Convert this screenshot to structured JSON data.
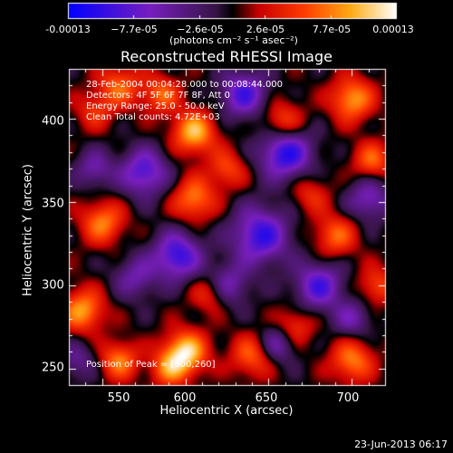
{
  "colorbar": {
    "ticks": [
      "-0.00013",
      "−7.7e-05",
      "−2.6e-05",
      "2.6e-05",
      "7.7e-05",
      "0.00013"
    ],
    "units": "(photons cm⁻² s⁻¹ asec⁻²)"
  },
  "title": "Reconstructed RHESSI Image",
  "info": {
    "time_range": "28-Feb-2004 00:04:28.000 to 00:08:44.000",
    "detectors": "Detectors: 4F 5F 6F 7F 8F, Att 0",
    "energy_range": "Energy Range: 25.0 - 50.0 keV",
    "algorithm": "Clean     Total counts: 4.72E+03",
    "peak": "Position of Peak = [600,260]"
  },
  "axes": {
    "xlabel": "Heliocentric X (arcsec)",
    "ylabel": "Heliocentric Y (arcsec)",
    "xticks": [
      "550",
      "600",
      "650",
      "700"
    ],
    "yticks": [
      "400",
      "350",
      "300",
      "250"
    ],
    "x_tick_values": [
      550,
      600,
      650,
      700
    ],
    "y_tick_values": [
      400,
      350,
      300,
      250
    ],
    "xlim": [
      530,
      720
    ],
    "ylim": [
      240,
      430
    ]
  },
  "footer_date": "23-Jun-2013 06:17",
  "image_sources": [
    {
      "x": 600,
      "y": 260,
      "amp": 1.0,
      "s": 9
    },
    {
      "x": 590,
      "y": 250,
      "amp": 0.6,
      "s": 8
    },
    {
      "x": 605,
      "y": 392,
      "amp": 0.9,
      "s": 9
    },
    {
      "x": 585,
      "y": 415,
      "amp": 0.6,
      "s": 8
    },
    {
      "x": 560,
      "y": 420,
      "amp": 0.6,
      "s": 9
    },
    {
      "x": 545,
      "y": 405,
      "amp": 0.4,
      "s": 8
    },
    {
      "x": 658,
      "y": 398,
      "amp": 0.6,
      "s": 9
    },
    {
      "x": 700,
      "y": 412,
      "amp": 0.8,
      "s": 9
    },
    {
      "x": 712,
      "y": 375,
      "amp": 0.6,
      "s": 8
    },
    {
      "x": 605,
      "y": 352,
      "amp": 0.7,
      "s": 9
    },
    {
      "x": 625,
      "y": 370,
      "amp": 0.5,
      "s": 8
    },
    {
      "x": 550,
      "y": 338,
      "amp": 0.7,
      "s": 9
    },
    {
      "x": 538,
      "y": 285,
      "amp": 0.8,
      "s": 9
    },
    {
      "x": 560,
      "y": 255,
      "amp": 0.7,
      "s": 8
    },
    {
      "x": 640,
      "y": 258,
      "amp": 0.6,
      "s": 9
    },
    {
      "x": 665,
      "y": 275,
      "amp": 0.5,
      "s": 8
    },
    {
      "x": 690,
      "y": 330,
      "amp": 0.6,
      "s": 9
    },
    {
      "x": 715,
      "y": 300,
      "amp": 0.5,
      "s": 8
    },
    {
      "x": 700,
      "y": 255,
      "amp": 0.7,
      "s": 9
    },
    {
      "x": 615,
      "y": 295,
      "amp": 0.5,
      "s": 8
    },
    {
      "x": 675,
      "y": 355,
      "amp": 0.4,
      "s": 8
    },
    {
      "x": 595,
      "y": 318,
      "amp": -0.9,
      "s": 10
    },
    {
      "x": 645,
      "y": 330,
      "amp": -0.9,
      "s": 12
    },
    {
      "x": 660,
      "y": 380,
      "amp": -1.0,
      "s": 11
    },
    {
      "x": 575,
      "y": 368,
      "amp": -0.8,
      "s": 10
    },
    {
      "x": 635,
      "y": 415,
      "amp": -0.8,
      "s": 10
    },
    {
      "x": 570,
      "y": 305,
      "amp": -0.5,
      "s": 9
    },
    {
      "x": 680,
      "y": 300,
      "amp": -0.8,
      "s": 10
    },
    {
      "x": 710,
      "y": 352,
      "amp": -0.6,
      "s": 9
    },
    {
      "x": 655,
      "y": 265,
      "amp": -0.6,
      "s": 8
    },
    {
      "x": 700,
      "y": 280,
      "amp": -0.5,
      "s": 8
    },
    {
      "x": 545,
      "y": 370,
      "amp": -0.5,
      "s": 8
    },
    {
      "x": 535,
      "y": 255,
      "amp": -0.4,
      "s": 8
    },
    {
      "x": 625,
      "y": 300,
      "amp": -0.6,
      "s": 9
    }
  ]
}
